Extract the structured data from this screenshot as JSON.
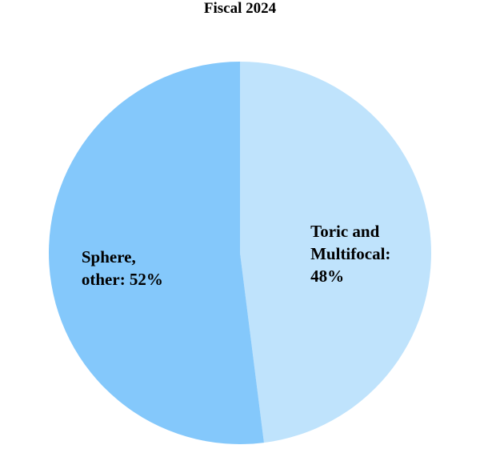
{
  "chart_data": {
    "type": "pie",
    "title": "Fiscal 2024",
    "values": [
      48,
      52
    ],
    "value_labels": [
      "Toric and Multifocal: 48%",
      "Sphere, other: 52%"
    ],
    "colors": [
      "#bfe3fc",
      "#84c8fb"
    ]
  }
}
